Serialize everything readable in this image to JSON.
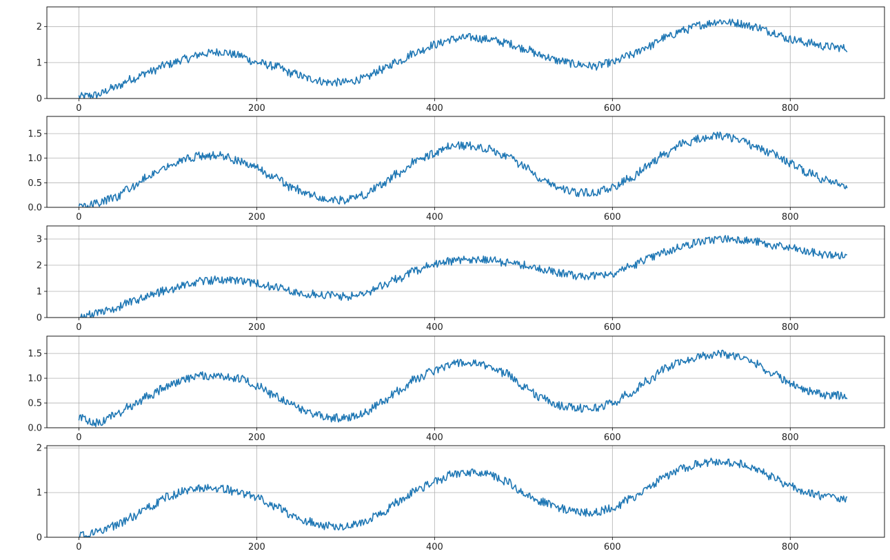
{
  "colors": {
    "line": "#1f77b4",
    "grid": "#b0b0b0",
    "axes": "#000000",
    "background": "#ffffff"
  },
  "chart_data": [
    {
      "type": "line",
      "grid": true,
      "xlim": [
        -36,
        906
      ],
      "ylim": [
        0,
        2.55
      ],
      "xticks": [
        0,
        200,
        400,
        600,
        800
      ],
      "xtick_labels": [
        "0",
        "200",
        "400",
        "600",
        "800"
      ],
      "yticks": [
        0,
        1,
        2
      ],
      "ytick_labels": [
        "0",
        "1",
        "2"
      ],
      "series": [
        {
          "x": [
            0,
            20,
            40,
            60,
            80,
            100,
            120,
            140,
            160,
            180,
            200,
            220,
            240,
            260,
            280,
            300,
            320,
            340,
            360,
            380,
            400,
            420,
            440,
            460,
            480,
            500,
            520,
            540,
            560,
            580,
            600,
            620,
            640,
            660,
            680,
            700,
            720,
            740,
            760,
            780,
            800,
            820,
            840,
            864
          ],
          "y": [
            0.05,
            0.1,
            0.3,
            0.55,
            0.75,
            0.95,
            1.1,
            1.25,
            1.3,
            1.2,
            1.0,
            0.9,
            0.7,
            0.55,
            0.45,
            0.45,
            0.55,
            0.8,
            1.05,
            1.3,
            1.5,
            1.65,
            1.7,
            1.65,
            1.55,
            1.4,
            1.2,
            1.05,
            0.95,
            0.9,
            1.0,
            1.2,
            1.45,
            1.7,
            1.9,
            2.05,
            2.15,
            2.1,
            2.0,
            1.85,
            1.65,
            1.55,
            1.45,
            1.4
          ]
        }
      ]
    },
    {
      "type": "line",
      "grid": true,
      "xlim": [
        -36,
        906
      ],
      "ylim": [
        0,
        1.85
      ],
      "xticks": [
        0,
        200,
        400,
        600,
        800
      ],
      "xtick_labels": [
        "0",
        "200",
        "400",
        "600",
        "800"
      ],
      "yticks": [
        0,
        0.5,
        1.0,
        1.5
      ],
      "ytick_labels": [
        "0.0",
        "0.5",
        "1.0",
        "1.5"
      ],
      "series": [
        {
          "x": [
            0,
            20,
            40,
            60,
            80,
            100,
            120,
            140,
            160,
            180,
            200,
            220,
            240,
            260,
            280,
            300,
            320,
            340,
            360,
            380,
            400,
            420,
            440,
            460,
            480,
            500,
            520,
            540,
            560,
            580,
            600,
            620,
            640,
            660,
            680,
            700,
            720,
            740,
            760,
            780,
            800,
            820,
            840,
            864
          ],
          "y": [
            0.02,
            0.08,
            0.2,
            0.4,
            0.65,
            0.85,
            1.0,
            1.05,
            1.05,
            0.95,
            0.8,
            0.6,
            0.4,
            0.25,
            0.15,
            0.15,
            0.25,
            0.45,
            0.7,
            0.95,
            1.1,
            1.25,
            1.25,
            1.2,
            1.05,
            0.85,
            0.6,
            0.4,
            0.3,
            0.3,
            0.4,
            0.6,
            0.85,
            1.1,
            1.3,
            1.4,
            1.45,
            1.4,
            1.25,
            1.1,
            0.9,
            0.7,
            0.55,
            0.45
          ]
        }
      ]
    },
    {
      "type": "line",
      "grid": true,
      "xlim": [
        -36,
        906
      ],
      "ylim": [
        0,
        3.5
      ],
      "xticks": [
        0,
        200,
        400,
        600,
        800
      ],
      "xtick_labels": [
        "0",
        "200",
        "400",
        "600",
        "800"
      ],
      "yticks": [
        0,
        1,
        2,
        3
      ],
      "ytick_labels": [
        "0",
        "1",
        "2",
        "3"
      ],
      "series": [
        {
          "x": [
            0,
            20,
            40,
            60,
            80,
            100,
            120,
            140,
            160,
            180,
            200,
            220,
            240,
            260,
            280,
            300,
            320,
            340,
            360,
            380,
            400,
            420,
            440,
            460,
            480,
            500,
            520,
            540,
            560,
            580,
            600,
            620,
            640,
            660,
            680,
            700,
            720,
            740,
            760,
            780,
            800,
            820,
            840,
            864
          ],
          "y": [
            0.05,
            0.15,
            0.35,
            0.6,
            0.85,
            1.05,
            1.25,
            1.4,
            1.45,
            1.4,
            1.3,
            1.15,
            1.0,
            0.9,
            0.85,
            0.8,
            0.9,
            1.2,
            1.5,
            1.8,
            2.05,
            2.15,
            2.2,
            2.2,
            2.1,
            2.0,
            1.85,
            1.7,
            1.6,
            1.6,
            1.7,
            1.95,
            2.25,
            2.5,
            2.75,
            2.9,
            3.0,
            3.0,
            2.9,
            2.75,
            2.65,
            2.5,
            2.4,
            2.35
          ]
        }
      ]
    },
    {
      "type": "line",
      "grid": true,
      "xlim": [
        -36,
        906
      ],
      "ylim": [
        0,
        1.85
      ],
      "xticks": [
        0,
        200,
        400,
        600,
        800
      ],
      "xtick_labels": [
        "0",
        "200",
        "400",
        "600",
        "800"
      ],
      "yticks": [
        0,
        0.5,
        1.0,
        1.5
      ],
      "ytick_labels": [
        "0.0",
        "0.5",
        "1.0",
        "1.5"
      ],
      "series": [
        {
          "x": [
            0,
            20,
            40,
            60,
            80,
            100,
            120,
            140,
            160,
            180,
            200,
            220,
            240,
            260,
            280,
            300,
            320,
            340,
            360,
            380,
            400,
            420,
            440,
            460,
            480,
            500,
            520,
            540,
            560,
            580,
            600,
            620,
            640,
            660,
            680,
            700,
            720,
            740,
            760,
            780,
            800,
            820,
            840,
            864
          ],
          "y": [
            0.2,
            0.1,
            0.25,
            0.45,
            0.65,
            0.85,
            1.0,
            1.05,
            1.05,
            1.0,
            0.85,
            0.65,
            0.45,
            0.3,
            0.2,
            0.2,
            0.3,
            0.5,
            0.75,
            1.0,
            1.15,
            1.3,
            1.3,
            1.25,
            1.1,
            0.85,
            0.6,
            0.45,
            0.4,
            0.4,
            0.5,
            0.7,
            0.95,
            1.2,
            1.35,
            1.45,
            1.5,
            1.45,
            1.3,
            1.1,
            0.9,
            0.75,
            0.65,
            0.65
          ]
        }
      ]
    },
    {
      "type": "line",
      "grid": true,
      "xlim": [
        -36,
        906
      ],
      "ylim": [
        0,
        2.05
      ],
      "xticks": [
        0,
        200,
        400,
        600,
        800
      ],
      "xtick_labels": [
        "0",
        "200",
        "400",
        "600",
        "800"
      ],
      "yticks": [
        0,
        1,
        2
      ],
      "ytick_labels": [
        "0",
        "1",
        "2"
      ],
      "series": [
        {
          "x": [
            0,
            20,
            40,
            60,
            80,
            100,
            120,
            140,
            160,
            180,
            200,
            220,
            240,
            260,
            280,
            300,
            320,
            340,
            360,
            380,
            400,
            420,
            440,
            460,
            480,
            500,
            520,
            540,
            560,
            580,
            600,
            620,
            640,
            660,
            680,
            700,
            720,
            740,
            760,
            780,
            800,
            820,
            840,
            864
          ],
          "y": [
            0.05,
            0.1,
            0.25,
            0.45,
            0.7,
            0.9,
            1.05,
            1.1,
            1.1,
            1.0,
            0.9,
            0.7,
            0.5,
            0.35,
            0.25,
            0.25,
            0.35,
            0.55,
            0.8,
            1.05,
            1.25,
            1.4,
            1.45,
            1.4,
            1.25,
            1.0,
            0.8,
            0.65,
            0.55,
            0.55,
            0.65,
            0.85,
            1.1,
            1.35,
            1.55,
            1.65,
            1.7,
            1.65,
            1.55,
            1.35,
            1.15,
            1.0,
            0.9,
            0.85
          ]
        }
      ]
    }
  ]
}
